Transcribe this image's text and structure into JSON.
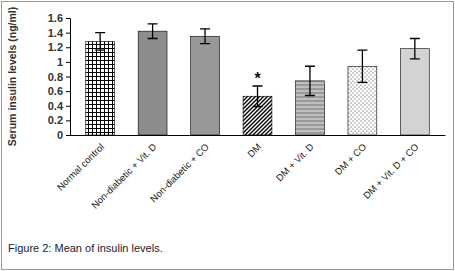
{
  "chart_data": {
    "type": "bar",
    "title": "Figure 2: Mean of insulin levels.",
    "y_label": "Serum insulin levels (ng/ml)",
    "categories": [
      "Normal control",
      "Non-diabetic + Vit. D",
      "Non-diabetic + CO",
      "DM",
      "DM + Vit. D",
      "DM + CO",
      "DM + Vit. D + CO"
    ],
    "values": [
      1.28,
      1.42,
      1.35,
      0.53,
      0.74,
      0.94,
      1.18
    ],
    "errors": [
      0.12,
      0.1,
      0.1,
      0.14,
      0.2,
      0.22,
      0.14
    ],
    "color": "#000000",
    "ylim": [
      0,
      1.6
    ],
    "yticks": [
      0,
      0.2,
      0.4,
      0.6,
      0.8,
      1,
      1.2,
      1.4,
      1.6
    ],
    "grid": false,
    "annotations": [
      {
        "text": "*",
        "category": "DM"
      }
    ]
  }
}
